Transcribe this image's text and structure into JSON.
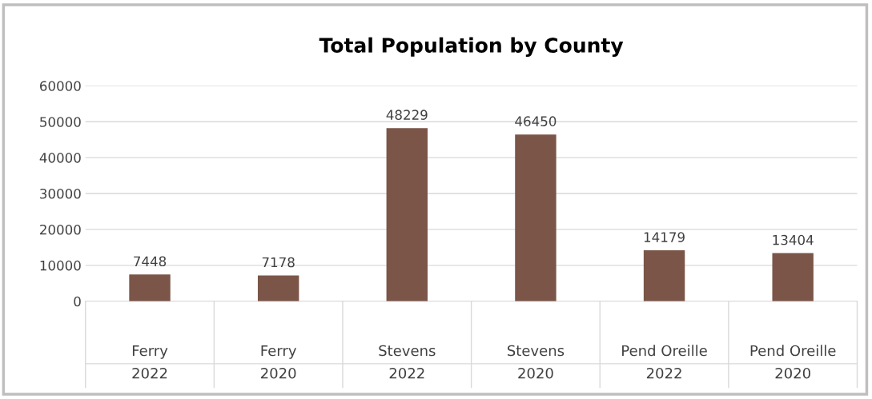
{
  "chart_data": {
    "type": "bar",
    "title": "Total Population by County",
    "categories": [
      "Ferry\n2022",
      "Ferry\n2020",
      "Stevens\n2022",
      "Stevens\n2020",
      "Pend Oreille\n2022",
      "Pend Oreille\n2020"
    ],
    "values": [
      7448,
      7178,
      48229,
      46450,
      14179,
      13404
    ],
    "color": "#7a5548",
    "ylim": [
      0,
      60000
    ],
    "yticks": [
      0,
      10000,
      20000,
      30000,
      40000,
      50000,
      60000
    ],
    "grid": "y",
    "data_labels": true,
    "legend": false
  }
}
